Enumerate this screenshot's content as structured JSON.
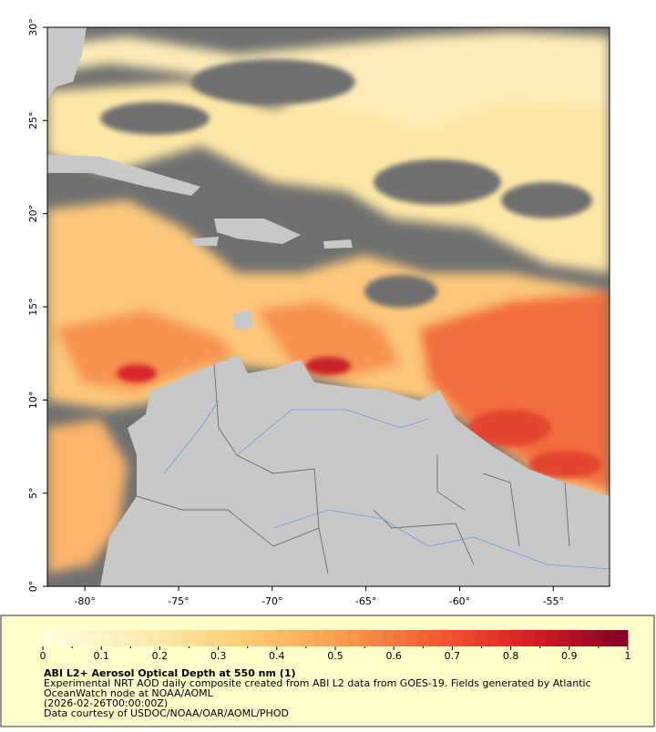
{
  "map": {
    "type": "map",
    "xlim": [
      -82,
      -52
    ],
    "ylim": [
      0,
      30
    ],
    "xticks": [
      {
        "value": -80,
        "label": "-80°"
      },
      {
        "value": -75,
        "label": "-75°"
      },
      {
        "value": -70,
        "label": "-70°"
      },
      {
        "value": -65,
        "label": "-65°"
      },
      {
        "value": -60,
        "label": "-60°"
      },
      {
        "value": -55,
        "label": "-55°"
      }
    ],
    "yticks": [
      {
        "value": 0,
        "label": "0°"
      },
      {
        "value": 5,
        "label": "5°"
      },
      {
        "value": 10,
        "label": "10°"
      },
      {
        "value": 15,
        "label": "15°"
      },
      {
        "value": 20,
        "label": "20°"
      },
      {
        "value": 25,
        "label": "25°"
      },
      {
        "value": 30,
        "label": "30°"
      }
    ]
  },
  "colorbar": {
    "lim": [
      0,
      1
    ],
    "ticks": [
      0,
      0.1,
      0.2,
      0.3,
      0.4,
      0.5,
      0.6,
      0.7,
      0.8,
      0.9,
      1
    ]
  },
  "caption": {
    "title": "ABI L2+ Aerosol Optical Depth at 550 nm (1)",
    "lines": [
      "Experimental NRT AOD daily composite created from ABI L2 data from GOES-19. Fields generated by Atlantic",
      "OceanWatch node at NOAA/AOML",
      "(2026-02-26T00:00:00Z)",
      "Data courtesy of USDOC/NOAA/OAR/AOML/PHOD"
    ]
  }
}
